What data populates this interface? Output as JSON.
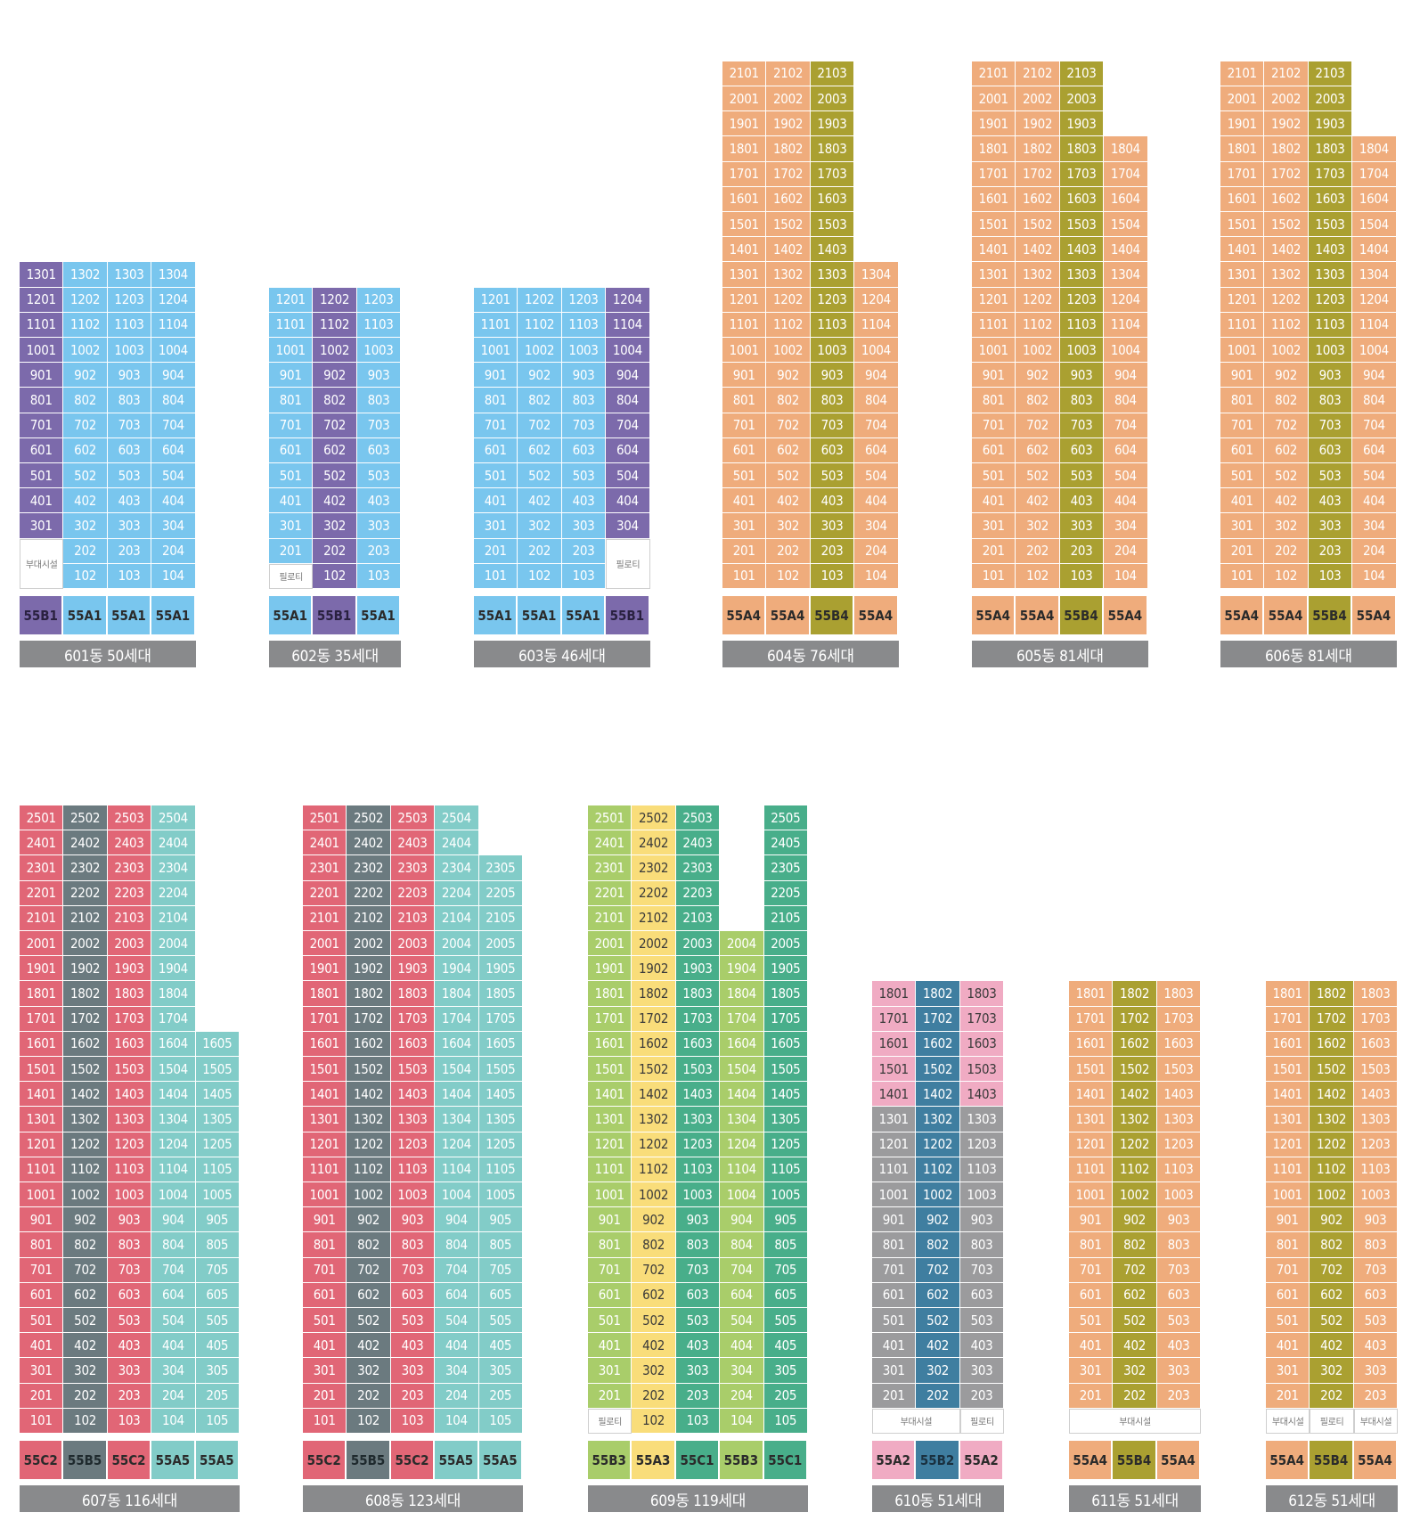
{
  "colors": {
    "purple": "#7c6aab",
    "sky": "#79c6ee",
    "orange": "#efac7c",
    "olive": "#aaa031",
    "red": "#e16676",
    "slate": "#6b7a7f",
    "teal": "#82ccc8",
    "lime": "#a9cd6a",
    "yellow": "#f9dd7a",
    "green": "#48ae8a",
    "pink": "#f0abc3",
    "blue": "#3f7ea0",
    "gray": "#9b9b9d",
    "label": "#898a8c"
  },
  "buildings": [
    {
      "label": "601동 50세대",
      "cols": [
        {
          "type": "55B1",
          "color": "purple",
          "top": 13,
          "start": 3,
          "notes": [
            {
              "text": "부대시설",
              "span": 2
            }
          ]
        },
        {
          "type": "55A1",
          "color": "sky",
          "top": 13,
          "start": 1
        },
        {
          "type": "55A1",
          "color": "sky",
          "top": 13,
          "start": 1
        },
        {
          "type": "55A1",
          "color": "sky",
          "top": 13,
          "start": 1
        }
      ]
    },
    {
      "label": "602동 35세대",
      "cols": [
        {
          "type": "55A1",
          "color": "sky",
          "top": 12,
          "start": 2,
          "notes": [
            {
              "text": "필로티",
              "span": 1
            }
          ]
        },
        {
          "type": "55B1",
          "color": "purple",
          "top": 12,
          "start": 1
        },
        {
          "type": "55A1",
          "color": "sky",
          "top": 12,
          "start": 1
        }
      ]
    },
    {
      "label": "603동 46세대",
      "cols": [
        {
          "type": "55A1",
          "color": "sky",
          "top": 12,
          "start": 1
        },
        {
          "type": "55A1",
          "color": "sky",
          "top": 12,
          "start": 1
        },
        {
          "type": "55A1",
          "color": "sky",
          "top": 12,
          "start": 1
        },
        {
          "type": "55B1",
          "color": "purple",
          "top": 12,
          "start": 3,
          "notes": [
            {
              "text": "필로티",
              "span": 2
            }
          ]
        }
      ]
    },
    {
      "label": "604동 76세대",
      "cols": [
        {
          "type": "55A4",
          "color": "orange",
          "top": 21,
          "start": 1
        },
        {
          "type": "55A4",
          "color": "orange",
          "top": 21,
          "start": 1
        },
        {
          "type": "55B4",
          "color": "olive",
          "top": 21,
          "start": 1
        },
        {
          "type": "55A4",
          "color": "orange",
          "top": 13,
          "start": 1
        }
      ]
    },
    {
      "label": "605동 81세대",
      "cols": [
        {
          "type": "55A4",
          "color": "orange",
          "top": 21,
          "start": 1
        },
        {
          "type": "55A4",
          "color": "orange",
          "top": 21,
          "start": 1
        },
        {
          "type": "55B4",
          "color": "olive",
          "top": 21,
          "start": 1
        },
        {
          "type": "55A4",
          "color": "orange",
          "top": 18,
          "start": 1
        }
      ]
    },
    {
      "label": "606동 81세대",
      "cols": [
        {
          "type": "55A4",
          "color": "orange",
          "top": 21,
          "start": 1
        },
        {
          "type": "55A4",
          "color": "orange",
          "top": 21,
          "start": 1
        },
        {
          "type": "55B4",
          "color": "olive",
          "top": 21,
          "start": 1
        },
        {
          "type": "55A4",
          "color": "orange",
          "top": 18,
          "start": 1
        }
      ]
    },
    {
      "label": "607동 116세대",
      "cols": [
        {
          "type": "55C2",
          "color": "red",
          "top": 25,
          "start": 1
        },
        {
          "type": "55B5",
          "color": "slate",
          "top": 25,
          "start": 1
        },
        {
          "type": "55C2",
          "color": "red",
          "top": 25,
          "start": 1
        },
        {
          "type": "55A5",
          "color": "teal",
          "top": 25,
          "start": 1
        },
        {
          "type": "55A5",
          "color": "teal",
          "top": 16,
          "start": 1
        }
      ]
    },
    {
      "label": "608동 123세대",
      "cols": [
        {
          "type": "55C2",
          "color": "red",
          "top": 25,
          "start": 1
        },
        {
          "type": "55B5",
          "color": "slate",
          "top": 25,
          "start": 1
        },
        {
          "type": "55C2",
          "color": "red",
          "top": 25,
          "start": 1
        },
        {
          "type": "55A5",
          "color": "teal",
          "top": 25,
          "start": 1
        },
        {
          "type": "55A5",
          "color": "teal",
          "top": 23,
          "start": 1
        }
      ]
    },
    {
      "label": "609동 119세대",
      "cols": [
        {
          "type": "55B3",
          "color": "lime",
          "top": 25,
          "start": 2,
          "notes": [
            {
              "text": "필로티",
              "span": 1
            }
          ]
        },
        {
          "type": "55A3",
          "color": "yellow",
          "top": 25,
          "start": 1
        },
        {
          "type": "55C1",
          "color": "green",
          "top": 25,
          "start": 1
        },
        {
          "type": "55B3",
          "color": "lime",
          "top": 20,
          "start": 1
        },
        {
          "type": "55C1",
          "color": "green",
          "top": 25,
          "start": 1
        }
      ]
    },
    {
      "label": "610동 51세대",
      "cols": [
        {
          "type": "55A2",
          "color": "pink",
          "top": 18,
          "start": 2,
          "lower": {
            "color": "gray",
            "upto": 13
          },
          "notes": [
            {
              "text": "부대시설",
              "span": 1,
              "colspan": 2
            }
          ]
        },
        {
          "type": "55B2",
          "color": "blue",
          "top": 18,
          "start": 2
        },
        {
          "type": "55A2",
          "color": "pink",
          "top": 18,
          "start": 2,
          "lower": {
            "color": "gray",
            "upto": 13
          },
          "notes": [
            {
              "text": "필로티",
              "span": 1
            }
          ]
        }
      ]
    },
    {
      "label": "611동 51세대",
      "cols": [
        {
          "type": "55A4",
          "color": "orange",
          "top": 18,
          "start": 2,
          "notes": [
            {
              "text": "부대시설",
              "span": 1,
              "colspan": 3
            }
          ]
        },
        {
          "type": "55B4",
          "color": "olive",
          "top": 18,
          "start": 2
        },
        {
          "type": "55A4",
          "color": "orange",
          "top": 18,
          "start": 2
        }
      ]
    },
    {
      "label": "612동 51세대",
      "cols": [
        {
          "type": "55A4",
          "color": "orange",
          "top": 18,
          "start": 2,
          "notes": [
            {
              "text": "부대시설",
              "span": 1
            }
          ]
        },
        {
          "type": "55B4",
          "color": "olive",
          "top": 18,
          "start": 2,
          "notes": [
            {
              "text": "필로티",
              "span": 1
            }
          ]
        },
        {
          "type": "55A4",
          "color": "orange",
          "top": 18,
          "start": 2,
          "notes": [
            {
              "text": "부대시설",
              "span": 1
            }
          ]
        }
      ]
    }
  ]
}
